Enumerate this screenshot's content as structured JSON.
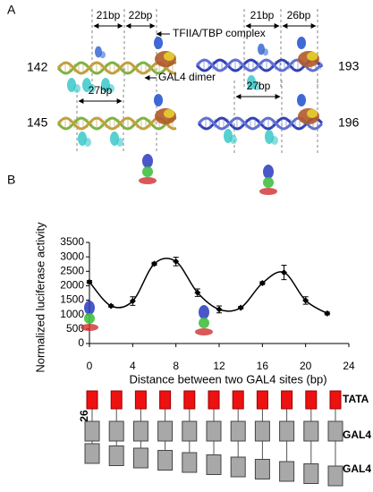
{
  "panel_a": {
    "label": "A",
    "top_left": {
      "number": "142",
      "spacings": [
        "21bp",
        "22bp"
      ]
    },
    "top_right": {
      "number": "193",
      "spacings": [
        "21bp",
        "26bp"
      ]
    },
    "bottom_left": {
      "number": "145",
      "spacings": [
        "27bp"
      ]
    },
    "bottom_right": {
      "number": "196",
      "spacings": [
        "27bp"
      ]
    },
    "annotations": [
      "TFIIA/TBP complex",
      "GAL4 dimer"
    ]
  },
  "panel_b_label": "B",
  "chart_data": {
    "type": "line",
    "xlabel": "Distance between two GAL4 sites (bp)",
    "ylabel": "Normalized luciferase activity",
    "x": [
      0,
      2,
      4,
      6,
      8,
      10,
      12,
      14,
      16,
      18,
      20,
      22
    ],
    "series": [
      {
        "color": "#000000",
        "values": [
          2130,
          1300,
          1470,
          2760,
          2840,
          1760,
          1180,
          1240,
          2090,
          2460,
          1490,
          1040
        ],
        "errors": [
          50,
          40,
          150,
          50,
          150,
          130,
          120,
          40,
          50,
          250,
          130,
          50
        ]
      }
    ],
    "xlim": [
      0,
      24
    ],
    "ylim": [
      0,
      3500
    ],
    "xticks": [
      0,
      4,
      8,
      12,
      16,
      20,
      24
    ],
    "yticks": [
      0,
      500,
      1000,
      1500,
      2000,
      2500,
      3000,
      3500
    ]
  },
  "diagram": {
    "spacer_label": "26",
    "rows": [
      "TATA",
      "GAL4",
      "GAL4"
    ]
  }
}
